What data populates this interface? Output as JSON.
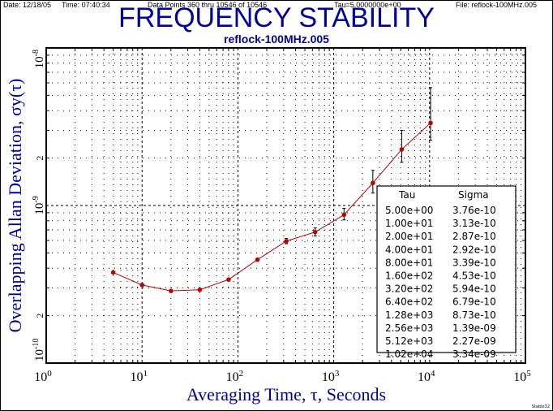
{
  "header": {
    "date": "Date: 12/18/05",
    "time": "Time: 07:40:34",
    "points": "Data Points 360 thru 10546 of 10546",
    "tau": "Tau=5.0000000e+00",
    "file": "File: reflock-100MHz.005"
  },
  "footer_mark": "Stable32",
  "colors": {
    "title": "#0000a0",
    "series": "#c00000",
    "axis": "#000000"
  },
  "chart_data": {
    "type": "line",
    "title": "FREQUENCY STABILITY",
    "subtitle": "reflock-100MHz.005",
    "xlabel": "Averaging Time, τ, Seconds",
    "ylabel": "Overlapping Allan Deviation, σy(τ)",
    "xscale": "log",
    "yscale": "log",
    "xlim": [
      1,
      100000
    ],
    "ylim": [
      1e-10,
      1e-08
    ],
    "grid": true,
    "x_ticks": [
      {
        "base": "10",
        "exp": "0"
      },
      {
        "base": "10",
        "exp": "1"
      },
      {
        "base": "10",
        "exp": "2"
      },
      {
        "base": "10",
        "exp": "3"
      },
      {
        "base": "10",
        "exp": "4"
      },
      {
        "base": "10",
        "exp": "5"
      }
    ],
    "y_ticks": [
      {
        "label": "10",
        "exp": "-10",
        "value": 1e-10
      },
      {
        "label": "2",
        "exp": "",
        "value": 2e-10
      },
      {
        "label": "10",
        "exp": "-9",
        "value": 1e-09
      },
      {
        "label": "2",
        "exp": "",
        "value": 2e-09
      },
      {
        "label": "10",
        "exp": "-8",
        "value": 1e-08
      }
    ],
    "x": [
      5,
      10,
      20,
      40,
      80,
      160,
      320,
      640,
      1280,
      2560,
      5120,
      10240
    ],
    "y": [
      3.76e-10,
      3.13e-10,
      2.87e-10,
      2.92e-10,
      3.39e-10,
      4.53e-10,
      5.94e-10,
      6.79e-10,
      8.73e-10,
      1.39e-09,
      2.27e-09,
      3.34e-09
    ],
    "error_upper": [
      3.78e-10,
      3.15e-10,
      2.89e-10,
      2.95e-10,
      3.44e-10,
      4.62e-10,
      6.18e-10,
      7.2e-10,
      9.6e-10,
      1.67e-09,
      3e-09,
      5.6e-09
    ],
    "error_lower": [
      3.74e-10,
      3.11e-10,
      2.85e-10,
      2.89e-10,
      3.34e-10,
      4.44e-10,
      5.72e-10,
      6.4e-10,
      8.1e-10,
      1.2e-09,
      1.88e-09,
      2.6e-09
    ],
    "table": {
      "headers": [
        "Tau",
        "Sigma"
      ],
      "rows": [
        [
          "5.00e+00",
          "3.76e-10"
        ],
        [
          "1.00e+01",
          "3.13e-10"
        ],
        [
          "2.00e+01",
          "2.87e-10"
        ],
        [
          "4.00e+01",
          "2.92e-10"
        ],
        [
          "8.00e+01",
          "3.39e-10"
        ],
        [
          "1.60e+02",
          "4.53e-10"
        ],
        [
          "3.20e+02",
          "5.94e-10"
        ],
        [
          "6.40e+02",
          "6.79e-10"
        ],
        [
          "1.28e+03",
          "8.73e-10"
        ],
        [
          "2.56e+03",
          "1.39e-09"
        ],
        [
          "5.12e+03",
          "2.27e-09"
        ],
        [
          "1.02e+04",
          "3.34e-09"
        ]
      ]
    }
  }
}
